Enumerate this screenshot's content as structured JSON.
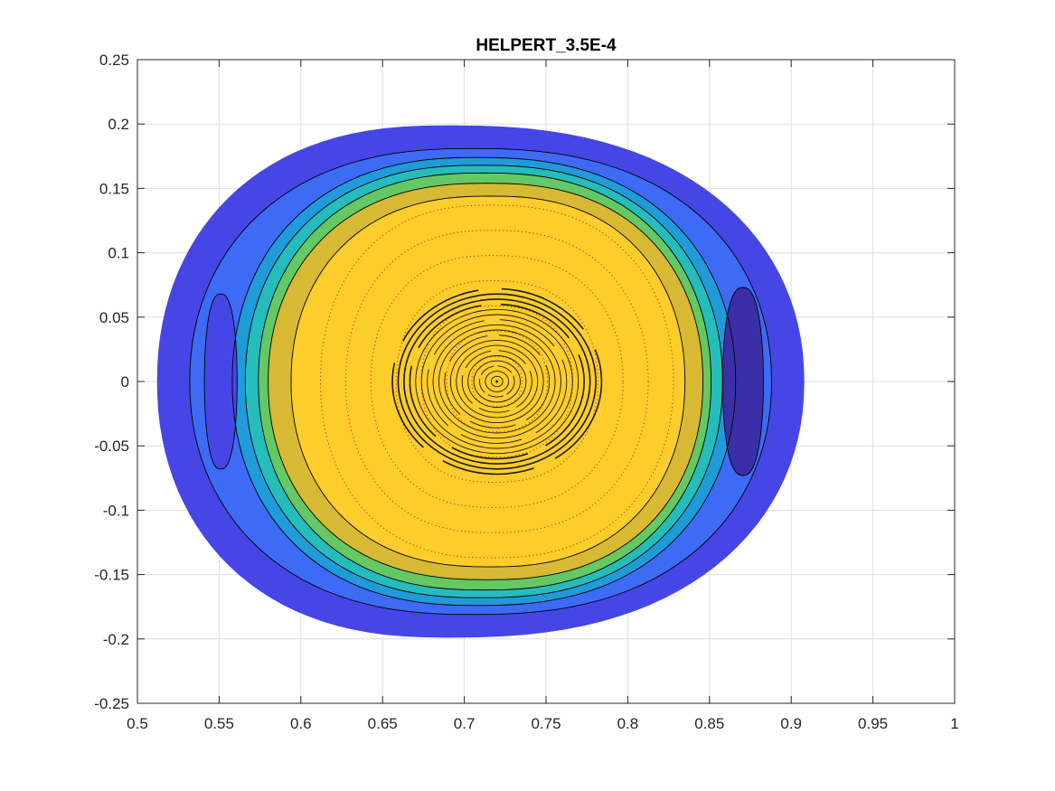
{
  "chart_data": {
    "type": "contour",
    "title": "HELPERT_3.5E-4",
    "xlabel": "",
    "ylabel": "",
    "xlim": [
      0.5,
      1.0
    ],
    "ylim": [
      -0.25,
      0.25
    ],
    "x_ticks": [
      0.5,
      0.55,
      0.6,
      0.65,
      0.7,
      0.75,
      0.8,
      0.85,
      0.9,
      0.95,
      1.0
    ],
    "x_tick_labels": [
      "0.5",
      "0.55",
      "0.6",
      "0.65",
      "0.7",
      "0.75",
      "0.8",
      "0.85",
      "0.9",
      "0.95",
      "1"
    ],
    "y_ticks": [
      -0.25,
      -0.2,
      -0.15,
      -0.1,
      -0.05,
      0,
      0.05,
      0.1,
      0.15,
      0.2,
      0.25
    ],
    "y_tick_labels": [
      "-0.25",
      "-0.2",
      "-0.15",
      "-0.1",
      "-0.05",
      "0",
      "0.05",
      "0.1",
      "0.15",
      "0.2",
      "0.25"
    ],
    "grid": true,
    "colors": {
      "level_1": "#4646e6",
      "level_2": "#3d6bf5",
      "level_3": "#1f9bd9",
      "level_4": "#25bcbc",
      "level_5": "#64c864",
      "level_6": "#d7b933",
      "level_7": "#fdcd2c",
      "island_dark": "#3a2fa8",
      "contour_line": "#000000",
      "dotted_surface": "#d81a1a"
    },
    "boundary": {
      "r_min": 0.512,
      "r_max": 0.908,
      "z_min": -0.199,
      "z_max": 0.199,
      "r_at_z_extreme": 0.69
    },
    "magnetic_axis": {
      "r": 0.72,
      "z": 0.0
    },
    "contour_levels": [
      {
        "color": "level_2",
        "r_min": 0.532,
        "r_max": 0.888,
        "z_max": 0.181,
        "r_top": 0.705
      },
      {
        "color": "level_3",
        "r_min": 0.558,
        "r_max": 0.866,
        "z_max": 0.174,
        "r_top": 0.708
      },
      {
        "color": "level_4",
        "r_min": 0.566,
        "r_max": 0.858,
        "z_max": 0.168,
        "r_top": 0.71
      },
      {
        "color": "level_5",
        "r_min": 0.574,
        "r_max": 0.851,
        "z_max": 0.162,
        "r_top": 0.712
      },
      {
        "color": "level_6",
        "r_min": 0.58,
        "r_max": 0.846,
        "z_max": 0.154,
        "r_top": 0.714
      },
      {
        "color": "level_7",
        "r_min": 0.594,
        "r_max": 0.835,
        "z_max": 0.144,
        "r_top": 0.716
      }
    ],
    "islands": [
      {
        "side": "left",
        "r_min": 0.541,
        "r_max": 0.561,
        "z_min": -0.069,
        "z_max": 0.068,
        "color": "level_1"
      },
      {
        "side": "right",
        "r_min": 0.858,
        "r_max": 0.883,
        "z_min": -0.072,
        "z_max": 0.073,
        "color": "island_dark"
      }
    ]
  }
}
